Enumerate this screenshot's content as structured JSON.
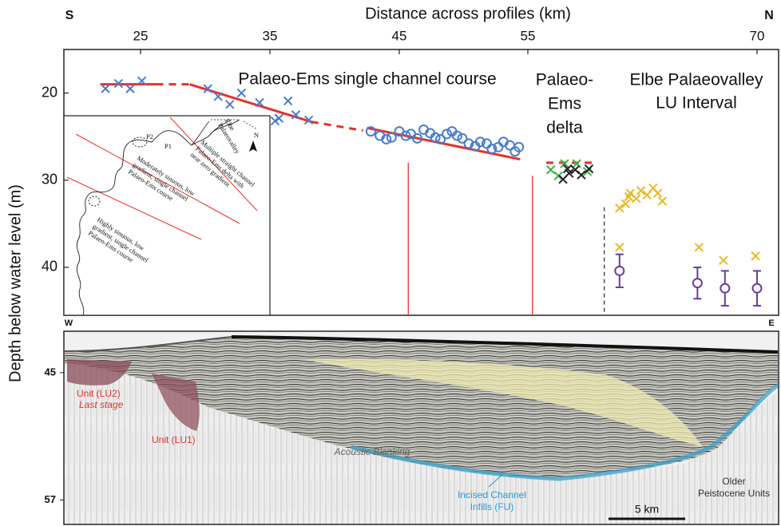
{
  "chart_data": {
    "type": "scatter",
    "title": "Distance across profiles (km)",
    "y_label": "Depth below water level (m)",
    "direction_labels": {
      "left": "S",
      "right": "N"
    },
    "xlim": [
      19.1,
      71.4
    ],
    "xticks": [
      25,
      35,
      45,
      55,
      70
    ],
    "ylim": [
      15,
      45.5
    ],
    "yticks": [
      20,
      30,
      40
    ],
    "y_inverted": true,
    "series": [
      {
        "marker": "x",
        "color": "#4a7cc7",
        "x": [
          22.3,
          23.3,
          24.2,
          25.1,
          30.2,
          31.0,
          31.9,
          32.8,
          34.2,
          35.4,
          35.7,
          36.4,
          37.0,
          38.0
        ],
        "values": [
          19.5,
          18.9,
          19.5,
          18.6,
          19.5,
          20.4,
          21.3,
          20.0,
          21.1,
          23.2,
          22.9,
          20.9,
          22.5,
          23.1
        ]
      },
      {
        "marker": "o",
        "color": "#4a7cc7",
        "x": [
          42.8,
          43.5,
          44.0,
          44.4,
          45.0,
          45.5,
          45.9,
          46.4,
          46.9,
          47.4,
          47.8,
          48.2,
          48.7,
          49.1,
          49.5,
          49.9,
          50.4,
          50.9,
          51.3,
          51.8,
          52.2,
          52.7,
          53.1,
          53.6,
          54.0,
          54.3
        ],
        "values": [
          24.4,
          24.9,
          25.3,
          25.1,
          24.4,
          24.9,
          24.7,
          25.2,
          24.2,
          24.6,
          25.1,
          25.3,
          24.7,
          24.4,
          24.9,
          25.2,
          25.8,
          26.1,
          25.6,
          25.8,
          26.4,
          26.2,
          25.6,
          26.0,
          26.7,
          26.2
        ]
      },
      {
        "marker": "x",
        "color": "#3cb043",
        "x": [
          56.5,
          57.4,
          58.2,
          58.9,
          57.0
        ],
        "values": [
          28.8,
          28.1,
          28.1,
          29.0,
          29.5
        ]
      },
      {
        "marker": "x",
        "color": "#222222",
        "x": [
          57.3,
          57.7,
          58.1,
          58.5,
          59.0,
          57.6
        ],
        "values": [
          29.9,
          29.2,
          28.8,
          29.4,
          28.7,
          28.7
        ]
      },
      {
        "marker": "x",
        "color": "#e8b82a",
        "x": [
          61.0,
          61.4,
          61.7,
          62.1,
          62.4,
          62.8,
          63.2,
          63.5,
          63.8,
          61.6,
          61.0,
          66.2,
          67.8,
          69.9
        ],
        "values": [
          33.2,
          32.7,
          31.5,
          32.1,
          31.2,
          31.7,
          30.9,
          31.5,
          32.4,
          31.9,
          37.7,
          37.7,
          39.2,
          38.7
        ]
      },
      {
        "marker": "o",
        "color": "#6a3d9a",
        "x": [
          61.0,
          66.1,
          67.9,
          70.0
        ],
        "values": [
          40.4,
          41.8,
          42.4,
          42.4
        ],
        "errors": [
          1.9,
          1.8,
          2.0,
          2.0
        ]
      }
    ],
    "trends": {
      "color": "#e8312a",
      "segments": [
        {
          "x": [
            21.9,
            26.2
          ],
          "values": [
            19.0,
            19.0
          ],
          "dashed": false
        },
        {
          "x": [
            26.2,
            28.8
          ],
          "values": [
            19.0,
            19.0
          ],
          "dashed": true
        },
        {
          "x": [
            28.8,
            38.2
          ],
          "values": [
            19.0,
            23.3
          ],
          "dashed": false
        },
        {
          "x": [
            38.2,
            42.2
          ],
          "values": [
            23.3,
            24.3
          ],
          "dashed": true
        },
        {
          "x": [
            42.5,
            54.4
          ],
          "values": [
            24.0,
            27.6
          ],
          "dashed": false
        },
        {
          "x": [
            56.2,
            59.5
          ],
          "values": [
            28.0,
            28.0
          ],
          "dashed": true
        }
      ]
    },
    "boundaries": [
      {
        "x": 45.7,
        "from": 28.0,
        "color": "#e8312a",
        "dashed": false
      },
      {
        "x": 55.3,
        "from": 29.5,
        "color": "#e8312a",
        "dashed": false
      },
      {
        "x": 60.0,
        "from": 33.1,
        "color": "#333333",
        "dashed": true
      }
    ],
    "annotations": {
      "channel": "Palaeo-Ems single channel course",
      "delta": [
        "Palaeo-",
        "Ems",
        "delta"
      ],
      "elbe": [
        "Elbe Palaeovalley",
        "LU Interval"
      ]
    }
  },
  "inset": {
    "elbe": [
      "Elbe",
      "Palaeovalley"
    ],
    "delta_zone": [
      "Multiple straight channel",
      "Palaeo-Ems delta with",
      "near zero gradient"
    ],
    "moderate": [
      "Moderately sinuous, low",
      "gradient, single channel",
      "Palaeo-Ems course"
    ],
    "high": [
      "Highly sinuous, low",
      "gradient, single channel",
      "Palaeo-Ems course"
    ],
    "points": [
      "P1",
      "P2"
    ],
    "north": "N"
  },
  "profile": {
    "direction_labels": {
      "left": "W",
      "right": "E"
    },
    "ylim": [
      41.1,
      59.3
    ],
    "yticks": [
      45,
      57
    ],
    "labels": {
      "lu2": "Unit (LU2)",
      "last_stage": "Last stage",
      "lu1": "Unit (LU1)",
      "blanking": "Acoustic Blanking",
      "incised": [
        "Incised Channel",
        "Infills (FU)"
      ],
      "older": [
        "Older",
        "Peistocene Units"
      ]
    },
    "scale_bar": "5 km"
  }
}
